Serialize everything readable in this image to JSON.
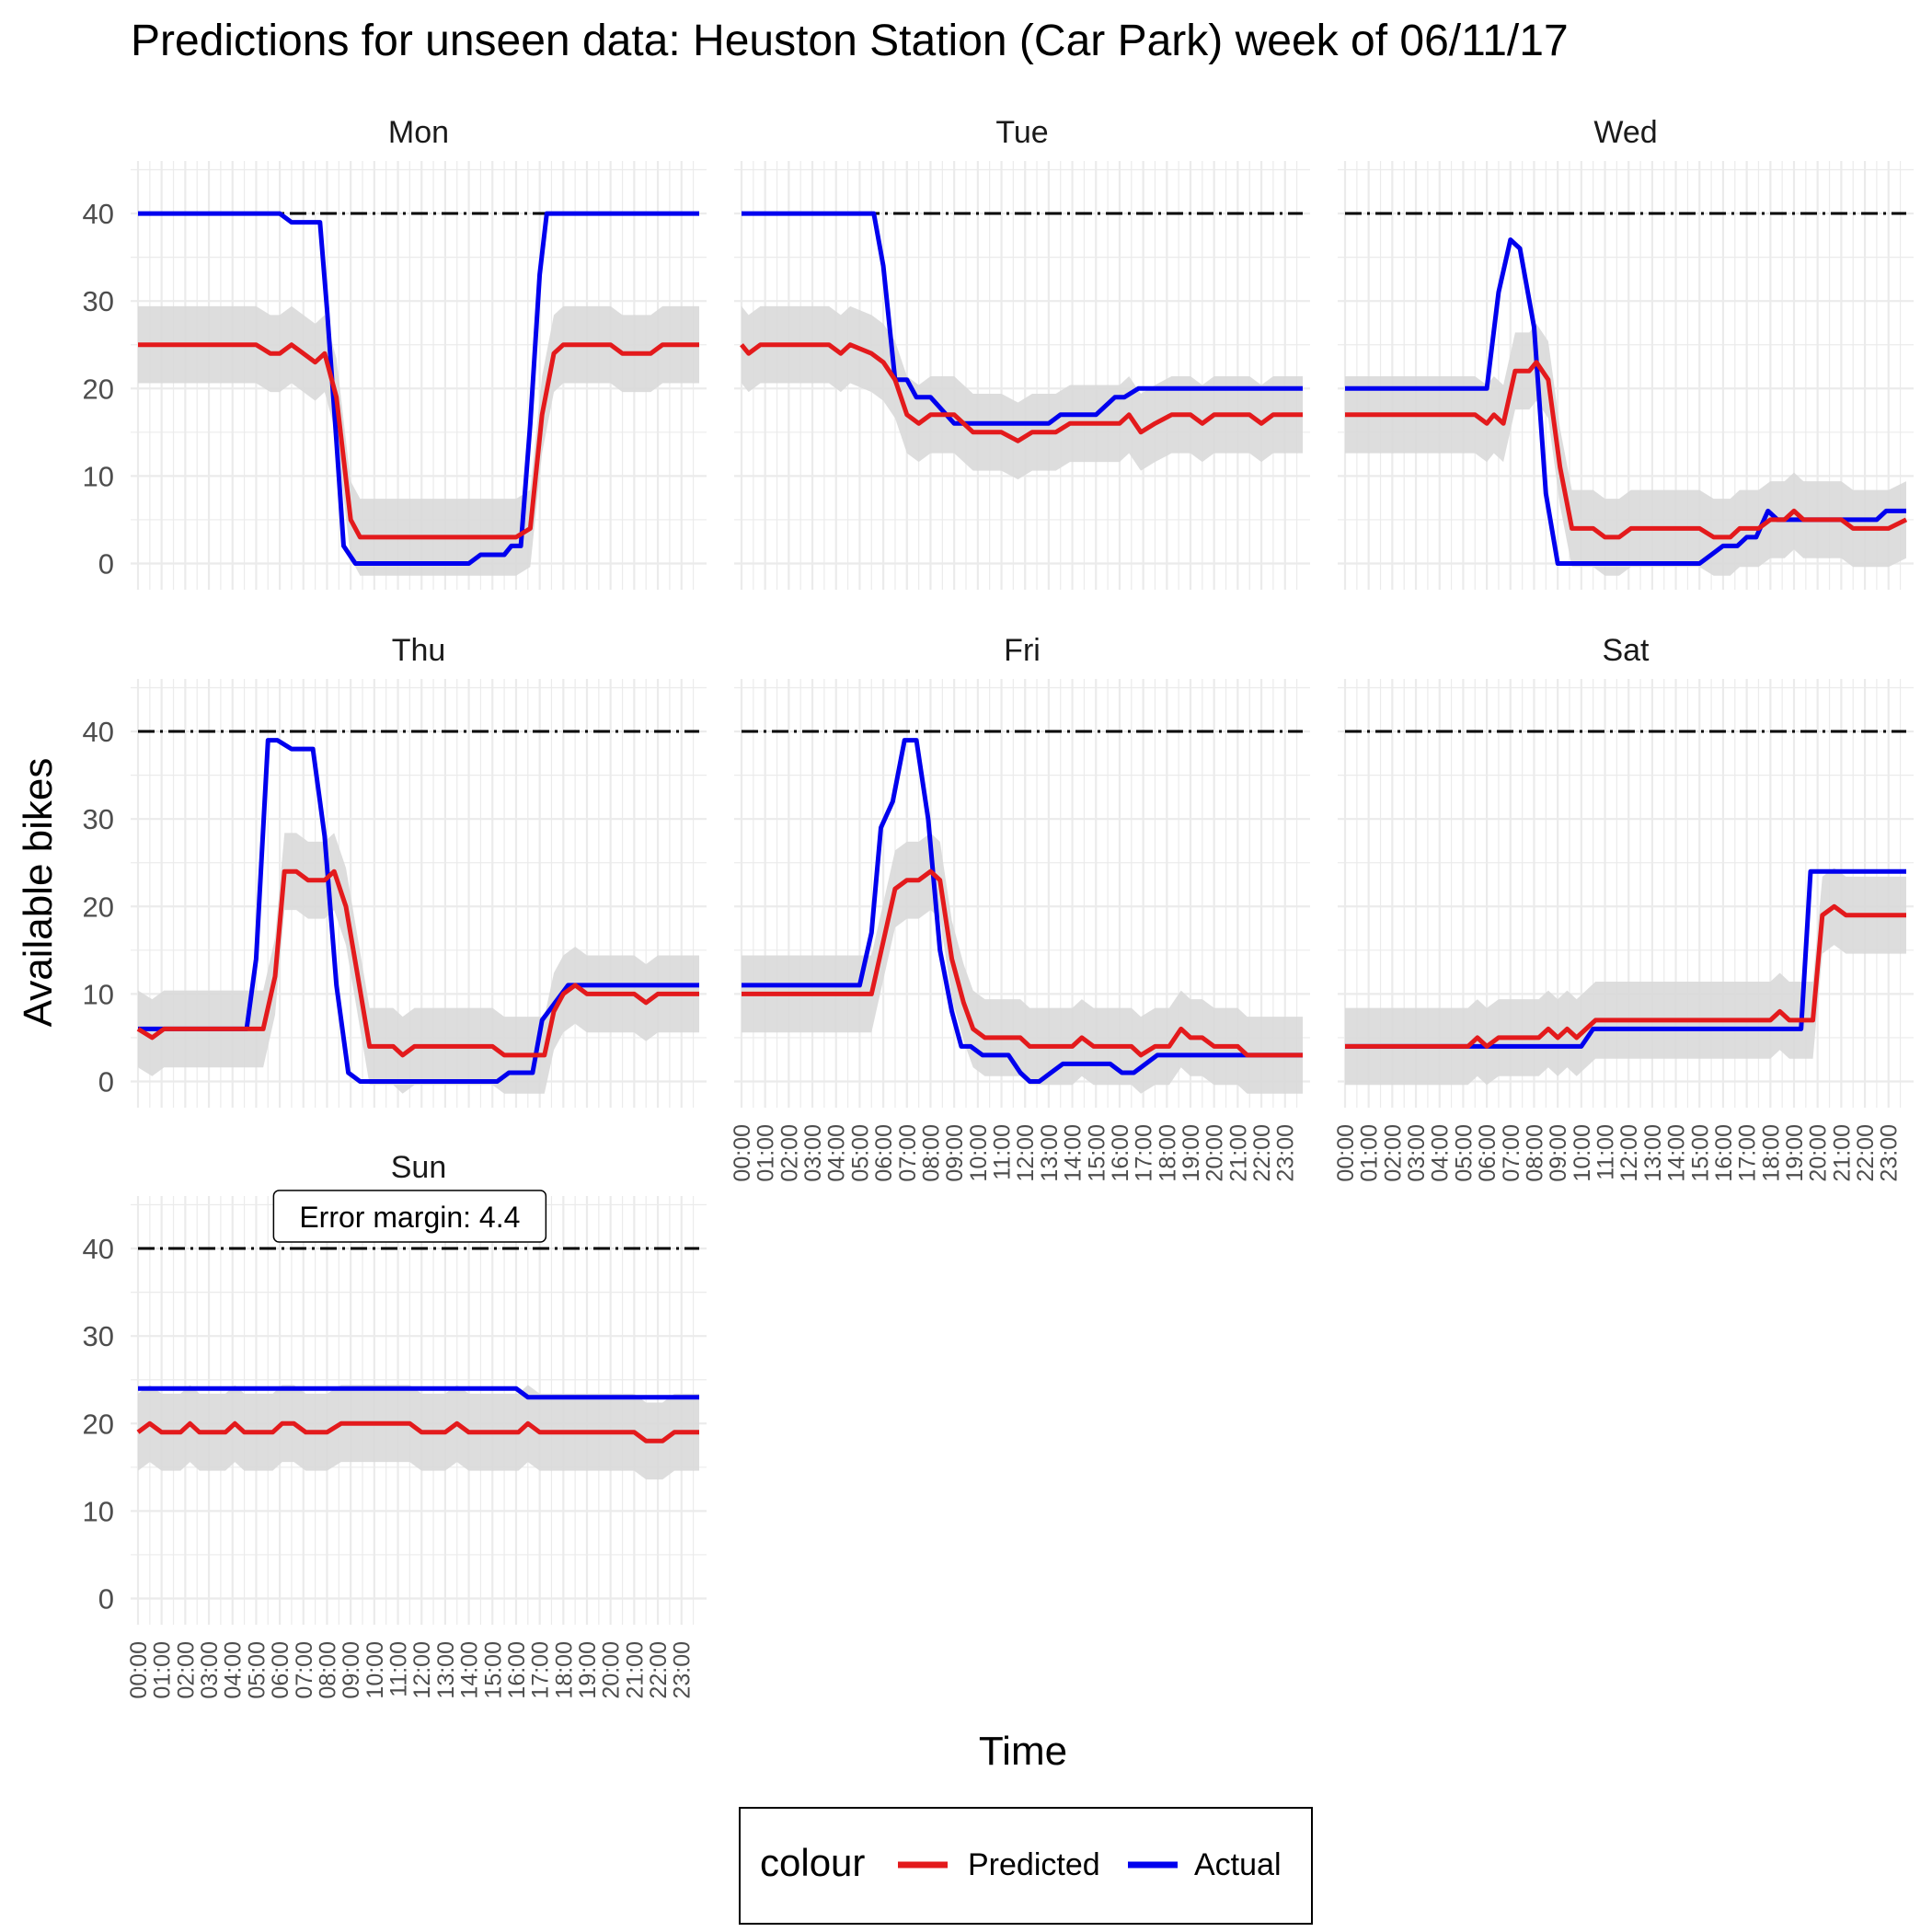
{
  "title": "Predictions for unseen data: Heuston Station (Car Park) week of 06/11/17",
  "xlabel": "Time",
  "ylabel": "Available bikes",
  "legend": {
    "title": "colour",
    "items": [
      {
        "label": "Predicted",
        "color": "#e31a1c"
      },
      {
        "label": "Actual",
        "color": "#0000ee"
      }
    ]
  },
  "annotation": {
    "text": "Error margin: 4.4",
    "panel": "Sun"
  },
  "colors": {
    "predicted": "#e31a1c",
    "actual": "#0000ee",
    "ribbon": "#d9d9d9",
    "capacity": "#000000",
    "grid": "#ebebeb"
  },
  "chart_data": {
    "type": "line",
    "x_tick_labels": [
      "00:00",
      "01:00",
      "02:00",
      "03:00",
      "04:00",
      "05:00",
      "06:00",
      "07:00",
      "08:00",
      "09:00",
      "10:00",
      "11:00",
      "12:00",
      "13:00",
      "14:00",
      "15:00",
      "16:00",
      "17:00",
      "18:00",
      "19:00",
      "20:00",
      "21:00",
      "22:00",
      "23:00"
    ],
    "y_ticks": [
      0,
      10,
      20,
      30,
      40
    ],
    "ylim": [
      -3,
      46
    ],
    "xlim_hours": [
      0,
      23.75
    ],
    "capacity_line": 40,
    "ribbon_halfwidth": 4.4,
    "grid": true,
    "legend_position": "bottom",
    "facets": [
      {
        "label": "Mon",
        "actual": [
          [
            0,
            40
          ],
          [
            6,
            40
          ],
          [
            6.5,
            39
          ],
          [
            7.7,
            39
          ],
          [
            8,
            29
          ],
          [
            8.4,
            14
          ],
          [
            8.7,
            2
          ],
          [
            9.2,
            0
          ],
          [
            14,
            0
          ],
          [
            14.5,
            1
          ],
          [
            15.5,
            1
          ],
          [
            15.8,
            2
          ],
          [
            16.2,
            2
          ],
          [
            16.6,
            16
          ],
          [
            17,
            33
          ],
          [
            17.3,
            40
          ],
          [
            23.75,
            40
          ]
        ],
        "predicted": [
          [
            0,
            25
          ],
          [
            5,
            25
          ],
          [
            5.6,
            24
          ],
          [
            6,
            24
          ],
          [
            6.5,
            25
          ],
          [
            7.5,
            23
          ],
          [
            7.9,
            24
          ],
          [
            8.4,
            19
          ],
          [
            9,
            5
          ],
          [
            9.4,
            3
          ],
          [
            16,
            3
          ],
          [
            16.6,
            4
          ],
          [
            17.1,
            17
          ],
          [
            17.6,
            24
          ],
          [
            18,
            25
          ],
          [
            20,
            25
          ],
          [
            20.5,
            24
          ],
          [
            21.7,
            24
          ],
          [
            22.2,
            25
          ],
          [
            23.75,
            25
          ]
        ]
      },
      {
        "label": "Tue",
        "actual": [
          [
            0,
            40
          ],
          [
            5.6,
            40
          ],
          [
            6,
            34
          ],
          [
            6.5,
            21
          ],
          [
            7,
            21
          ],
          [
            7.4,
            19
          ],
          [
            8,
            19
          ],
          [
            9,
            16
          ],
          [
            13,
            16
          ],
          [
            13.5,
            17
          ],
          [
            15,
            17
          ],
          [
            15.8,
            19
          ],
          [
            16.2,
            19
          ],
          [
            16.8,
            20
          ],
          [
            23.75,
            20
          ]
        ],
        "predicted": [
          [
            0,
            25
          ],
          [
            0.3,
            24
          ],
          [
            0.8,
            25
          ],
          [
            3.7,
            25
          ],
          [
            4.2,
            24
          ],
          [
            4.6,
            25
          ],
          [
            5.5,
            24
          ],
          [
            6,
            23
          ],
          [
            6.5,
            21
          ],
          [
            7,
            17
          ],
          [
            7.5,
            16
          ],
          [
            8,
            17
          ],
          [
            9,
            17
          ],
          [
            9.8,
            15
          ],
          [
            11,
            15
          ],
          [
            11.7,
            14
          ],
          [
            12.3,
            15
          ],
          [
            13.3,
            15
          ],
          [
            13.9,
            16
          ],
          [
            16,
            16
          ],
          [
            16.4,
            17
          ],
          [
            16.9,
            15
          ],
          [
            17.5,
            16
          ],
          [
            18.2,
            17
          ],
          [
            19,
            17
          ],
          [
            19.5,
            16
          ],
          [
            20,
            17
          ],
          [
            21.5,
            17
          ],
          [
            22,
            16
          ],
          [
            22.5,
            17
          ],
          [
            23.75,
            17
          ]
        ]
      },
      {
        "label": "Wed",
        "actual": [
          [
            0,
            20
          ],
          [
            6,
            20
          ],
          [
            6.5,
            31
          ],
          [
            7,
            37
          ],
          [
            7.4,
            36
          ],
          [
            8,
            27
          ],
          [
            8.5,
            8
          ],
          [
            9,
            0
          ],
          [
            15,
            0
          ],
          [
            15.5,
            1
          ],
          [
            16,
            2
          ],
          [
            16.6,
            2
          ],
          [
            17,
            3
          ],
          [
            17.4,
            3
          ],
          [
            17.9,
            6
          ],
          [
            18.3,
            5
          ],
          [
            22.5,
            5
          ],
          [
            22.9,
            6
          ],
          [
            23.75,
            6
          ]
        ],
        "predicted": [
          [
            0,
            17
          ],
          [
            5.5,
            17
          ],
          [
            6,
            16
          ],
          [
            6.3,
            17
          ],
          [
            6.7,
            16
          ],
          [
            7.2,
            22
          ],
          [
            7.8,
            22
          ],
          [
            8.1,
            23
          ],
          [
            8.6,
            21
          ],
          [
            9.1,
            11
          ],
          [
            9.6,
            4
          ],
          [
            10.5,
            4
          ],
          [
            11,
            3
          ],
          [
            11.6,
            3
          ],
          [
            12.1,
            4
          ],
          [
            15,
            4
          ],
          [
            15.6,
            3
          ],
          [
            16.3,
            3
          ],
          [
            16.7,
            4
          ],
          [
            17.5,
            4
          ],
          [
            18,
            5
          ],
          [
            18.6,
            5
          ],
          [
            19,
            6
          ],
          [
            19.4,
            5
          ],
          [
            21,
            5
          ],
          [
            21.5,
            4
          ],
          [
            23,
            4
          ],
          [
            23.75,
            5
          ]
        ]
      },
      {
        "label": "Thu",
        "actual": [
          [
            0,
            6
          ],
          [
            0.7,
            6
          ],
          [
            1.2,
            6
          ],
          [
            4.6,
            6
          ],
          [
            5,
            14
          ],
          [
            5.5,
            39
          ],
          [
            5.9,
            39
          ],
          [
            6.5,
            38
          ],
          [
            7.4,
            38
          ],
          [
            7.9,
            28
          ],
          [
            8.4,
            11
          ],
          [
            8.9,
            1
          ],
          [
            9.4,
            0
          ],
          [
            15.2,
            0
          ],
          [
            15.7,
            1
          ],
          [
            16.7,
            1
          ],
          [
            17.1,
            7
          ],
          [
            18.2,
            11
          ],
          [
            23.75,
            11
          ]
        ],
        "predicted": [
          [
            0,
            6
          ],
          [
            0.6,
            5
          ],
          [
            1.1,
            6
          ],
          [
            4.8,
            6
          ],
          [
            5.3,
            6
          ],
          [
            5.8,
            12
          ],
          [
            6.2,
            24
          ],
          [
            6.7,
            24
          ],
          [
            7.2,
            23
          ],
          [
            7.9,
            23
          ],
          [
            8.3,
            24
          ],
          [
            8.8,
            20
          ],
          [
            9.3,
            12
          ],
          [
            9.8,
            4
          ],
          [
            10.8,
            4
          ],
          [
            11.2,
            3
          ],
          [
            11.7,
            4
          ],
          [
            15,
            4
          ],
          [
            15.5,
            3
          ],
          [
            17.2,
            3
          ],
          [
            17.6,
            8
          ],
          [
            18,
            10
          ],
          [
            18.5,
            11
          ],
          [
            19,
            10
          ],
          [
            21,
            10
          ],
          [
            21.5,
            9
          ],
          [
            22,
            10
          ],
          [
            23.75,
            10
          ]
        ]
      },
      {
        "label": "Fri",
        "actual": [
          [
            0,
            11
          ],
          [
            5,
            11
          ],
          [
            5.5,
            17
          ],
          [
            5.9,
            29
          ],
          [
            6.4,
            32
          ],
          [
            6.9,
            39
          ],
          [
            7.4,
            39
          ],
          [
            7.9,
            30
          ],
          [
            8.4,
            15
          ],
          [
            8.9,
            8
          ],
          [
            9.3,
            4
          ],
          [
            9.7,
            4
          ],
          [
            10.2,
            3
          ],
          [
            11.3,
            3
          ],
          [
            11.8,
            1
          ],
          [
            12.2,
            0
          ],
          [
            12.6,
            0
          ],
          [
            13.6,
            2
          ],
          [
            15.6,
            2
          ],
          [
            16.1,
            1
          ],
          [
            16.6,
            1
          ],
          [
            17.6,
            3
          ],
          [
            23.75,
            3
          ]
        ],
        "predicted": [
          [
            0,
            10
          ],
          [
            5.5,
            10
          ],
          [
            6,
            16
          ],
          [
            6.5,
            22
          ],
          [
            7,
            23
          ],
          [
            7.5,
            23
          ],
          [
            8,
            24
          ],
          [
            8.4,
            23
          ],
          [
            8.9,
            14
          ],
          [
            9.4,
            9
          ],
          [
            9.8,
            6
          ],
          [
            10.3,
            5
          ],
          [
            11.8,
            5
          ],
          [
            12.2,
            4
          ],
          [
            14,
            4
          ],
          [
            14.4,
            5
          ],
          [
            14.9,
            4
          ],
          [
            16.5,
            4
          ],
          [
            16.9,
            3
          ],
          [
            17.5,
            4
          ],
          [
            18.1,
            4
          ],
          [
            18.6,
            6
          ],
          [
            19,
            5
          ],
          [
            19.5,
            5
          ],
          [
            20,
            4
          ],
          [
            21,
            4
          ],
          [
            21.4,
            3
          ],
          [
            23.75,
            3
          ]
        ]
      },
      {
        "label": "Sat",
        "actual": [
          [
            0,
            4
          ],
          [
            5.2,
            4
          ],
          [
            5.6,
            4
          ],
          [
            10,
            4
          ],
          [
            10.5,
            6
          ],
          [
            19.3,
            6
          ],
          [
            19.7,
            24
          ],
          [
            23.75,
            24
          ]
        ],
        "predicted": [
          [
            0,
            4
          ],
          [
            5.2,
            4
          ],
          [
            5.6,
            5
          ],
          [
            6,
            4
          ],
          [
            6.5,
            5
          ],
          [
            8.2,
            5
          ],
          [
            8.6,
            6
          ],
          [
            9,
            5
          ],
          [
            9.4,
            6
          ],
          [
            9.8,
            5
          ],
          [
            10.2,
            6
          ],
          [
            10.6,
            7
          ],
          [
            18,
            7
          ],
          [
            18.4,
            8
          ],
          [
            18.8,
            7
          ],
          [
            19.8,
            7
          ],
          [
            20.2,
            19
          ],
          [
            20.7,
            20
          ],
          [
            21.2,
            19
          ],
          [
            23.75,
            19
          ]
        ]
      },
      {
        "label": "Sun",
        "actual": [
          [
            0,
            24
          ],
          [
            16,
            24
          ],
          [
            16.5,
            23
          ],
          [
            23.75,
            23
          ]
        ],
        "predicted": [
          [
            0,
            19
          ],
          [
            0.5,
            20
          ],
          [
            1,
            19
          ],
          [
            1.8,
            19
          ],
          [
            2.2,
            20
          ],
          [
            2.6,
            19
          ],
          [
            3.7,
            19
          ],
          [
            4.1,
            20
          ],
          [
            4.5,
            19
          ],
          [
            5.7,
            19
          ],
          [
            6.1,
            20
          ],
          [
            6.6,
            20
          ],
          [
            7.1,
            19
          ],
          [
            8,
            19
          ],
          [
            8.6,
            20
          ],
          [
            11.5,
            20
          ],
          [
            12,
            19
          ],
          [
            13,
            19
          ],
          [
            13.5,
            20
          ],
          [
            14,
            19
          ],
          [
            16.1,
            19
          ],
          [
            16.5,
            20
          ],
          [
            17,
            19
          ],
          [
            21,
            19
          ],
          [
            21.5,
            18
          ],
          [
            22.2,
            18
          ],
          [
            22.7,
            19
          ],
          [
            23.75,
            19
          ]
        ]
      }
    ]
  }
}
